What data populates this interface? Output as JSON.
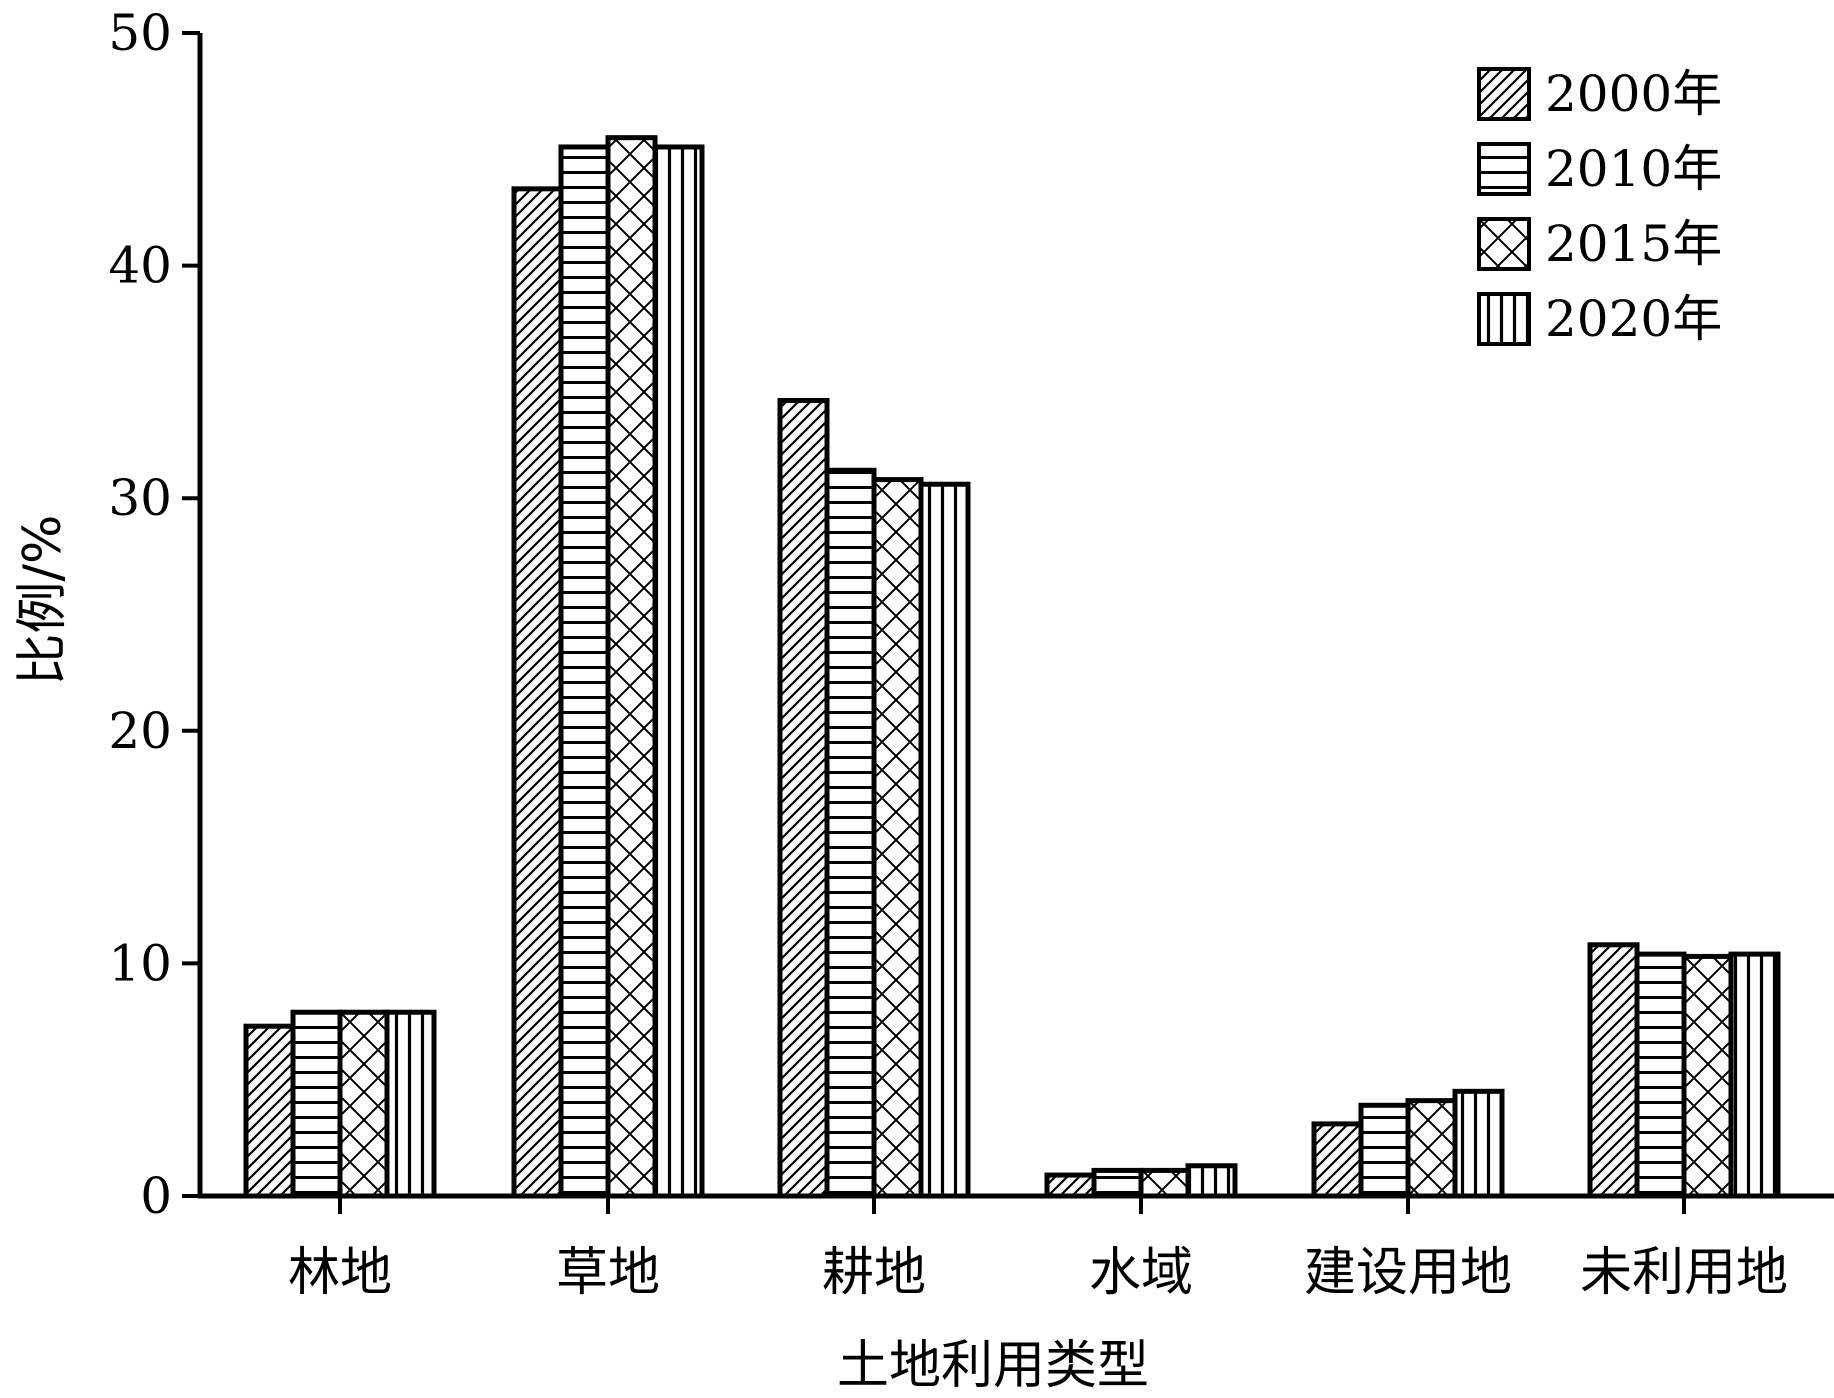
{
  "chart_data": {
    "type": "bar",
    "xlabel": "土地利用类型",
    "ylabel": "比例/%",
    "ylim": [
      0,
      50
    ],
    "yticks": [
      "0",
      "10",
      "20",
      "30",
      "40",
      "50"
    ],
    "grid": false,
    "legend_position": "top-right",
    "categories": [
      "林地",
      "草地",
      "耕地",
      "水域",
      "建设用地",
      "未利用地"
    ],
    "series": [
      {
        "name": "2000年",
        "pattern": "diagonal-hatch",
        "values": [
          7.3,
          43.3,
          34.2,
          0.9,
          3.1,
          10.8
        ]
      },
      {
        "name": "2010年",
        "pattern": "horizontal-lines",
        "values": [
          7.9,
          45.1,
          31.2,
          1.1,
          3.9,
          10.4
        ]
      },
      {
        "name": "2015年",
        "pattern": "crosshatch",
        "values": [
          7.9,
          45.5,
          30.8,
          1.1,
          4.1,
          10.3
        ]
      },
      {
        "name": "2020年",
        "pattern": "vertical-lines",
        "values": [
          7.9,
          45.1,
          30.6,
          1.3,
          4.5,
          10.4
        ]
      }
    ]
  }
}
